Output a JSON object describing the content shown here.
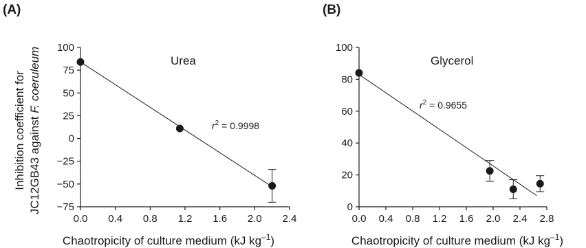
{
  "chart_data": [
    {
      "type": "scatter",
      "panel_label": "(A)",
      "series_label": "Urea",
      "annotation": {
        "r_symbol": "r",
        "r_exp": "2",
        "r_value": " = 0.9998"
      },
      "xlabel": "Chaotropicity of culture medium (kJ kg⁻¹)",
      "xlabel_parts": {
        "text": "Chaotropicity of culture medium (kJ kg",
        "sup": "–1",
        "close": ")"
      },
      "ylabel": "Inhibition coefficient for JC12GB43 against F. coeruleum",
      "ylabel_line1": "Inhibition coefficient for",
      "ylabel_line2_text": "JC12GB43 against ",
      "ylabel_line2_italic": "F. coeruleum",
      "xlim": [
        0,
        2.4
      ],
      "ylim": [
        -75,
        100
      ],
      "xticks": [
        "0.0",
        "0.4",
        "0.8",
        "1.2",
        "1.6",
        "2.0",
        "2.4"
      ],
      "yticks": [
        "100",
        "75",
        "50",
        "25",
        "0",
        "−25",
        "−50",
        "−75"
      ],
      "points": [
        {
          "x": 0.0,
          "y": 84,
          "err": 0
        },
        {
          "x": 1.14,
          "y": 11,
          "err": 0
        },
        {
          "x": 2.2,
          "y": -52,
          "err": 18
        }
      ],
      "fit": {
        "x": [
          0.0,
          2.2
        ],
        "y": [
          84,
          -53
        ]
      },
      "grid": false
    },
    {
      "type": "scatter",
      "panel_label": "(B)",
      "series_label": "Glycerol",
      "annotation": {
        "r_symbol": "r",
        "r_exp": "2",
        "r_value": " = 0.9655"
      },
      "xlabel": "Chaotropicity of culture medium (kJ kg⁻¹)",
      "xlabel_parts": {
        "text": "Chaotropicity of culture medium (kJ kg",
        "sup": "–1",
        "close": ")"
      },
      "xlim": [
        0,
        2.8
      ],
      "ylim": [
        0,
        100
      ],
      "xticks": [
        "0.0",
        "0.4",
        "0.8",
        "1.2",
        "1.6",
        "2.0",
        "2.4",
        "2.8"
      ],
      "yticks": [
        "100",
        "80",
        "60",
        "40",
        "20",
        "0"
      ],
      "points": [
        {
          "x": 0.0,
          "y": 84,
          "err": 0
        },
        {
          "x": 1.95,
          "y": 22.5,
          "err": 6.5
        },
        {
          "x": 2.3,
          "y": 11,
          "err": 6
        },
        {
          "x": 2.7,
          "y": 14.5,
          "err": 5
        }
      ],
      "fit": {
        "x": [
          0.0,
          2.65
        ],
        "y": [
          83,
          7
        ]
      },
      "grid": false
    }
  ]
}
